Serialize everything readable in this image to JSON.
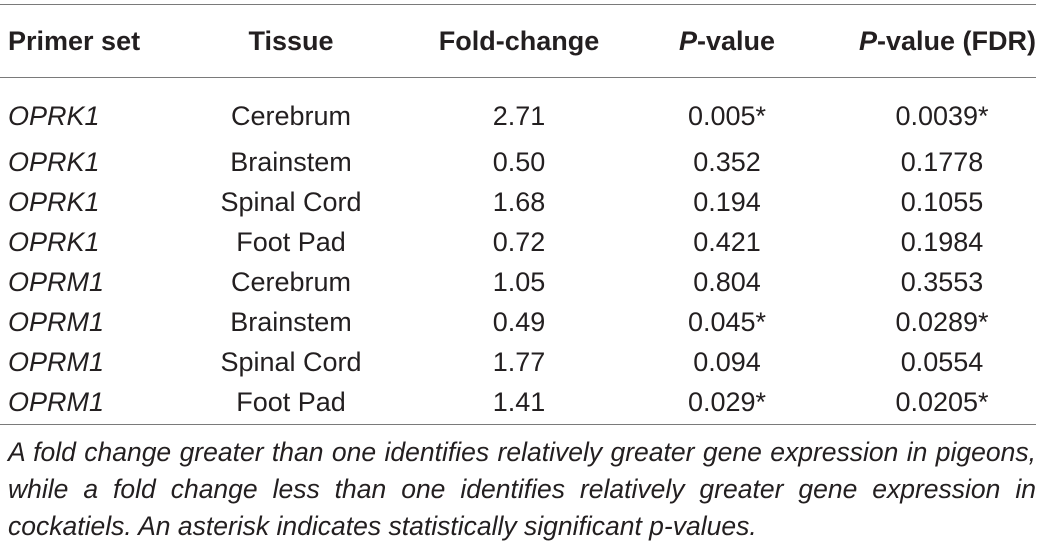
{
  "table": {
    "headers": {
      "primer_set": "Primer set",
      "tissue": "Tissue",
      "fold_change": "Fold-change",
      "p_value_italic": "P",
      "p_value_rest": "-value",
      "p_value_fdr_italic": "P",
      "p_value_fdr_rest": "-value (FDR)"
    },
    "rows": [
      {
        "primer": "OPRK1",
        "tissue": "Cerebrum",
        "fold_change": "2.71",
        "p_value": "0.005*",
        "p_fdr": "0.0039*"
      },
      {
        "primer": "OPRK1",
        "tissue": "Brainstem",
        "fold_change": "0.50",
        "p_value": "0.352",
        "p_fdr": "0.1778"
      },
      {
        "primer": "OPRK1",
        "tissue": "Spinal Cord",
        "fold_change": "1.68",
        "p_value": "0.194",
        "p_fdr": "0.1055"
      },
      {
        "primer": "OPRK1",
        "tissue": "Foot Pad",
        "fold_change": "0.72",
        "p_value": "0.421",
        "p_fdr": "0.1984"
      },
      {
        "primer": "OPRM1",
        "tissue": "Cerebrum",
        "fold_change": "1.05",
        "p_value": "0.804",
        "p_fdr": "0.3553"
      },
      {
        "primer": "OPRM1",
        "tissue": "Brainstem",
        "fold_change": "0.49",
        "p_value": "0.045*",
        "p_fdr": "0.0289*"
      },
      {
        "primer": "OPRM1",
        "tissue": "Spinal Cord",
        "fold_change": "1.77",
        "p_value": "0.094",
        "p_fdr": "0.0554"
      },
      {
        "primer": "OPRM1",
        "tissue": "Foot Pad",
        "fold_change": "1.41",
        "p_value": "0.029*",
        "p_fdr": "0.0205*"
      }
    ]
  },
  "footnote": "A fold change greater than one identifies relatively greater gene expression in pigeons, while a fold change less than one identifies relatively greater gene expression in cockatiels. An asterisk indicates statistically significant p-values."
}
